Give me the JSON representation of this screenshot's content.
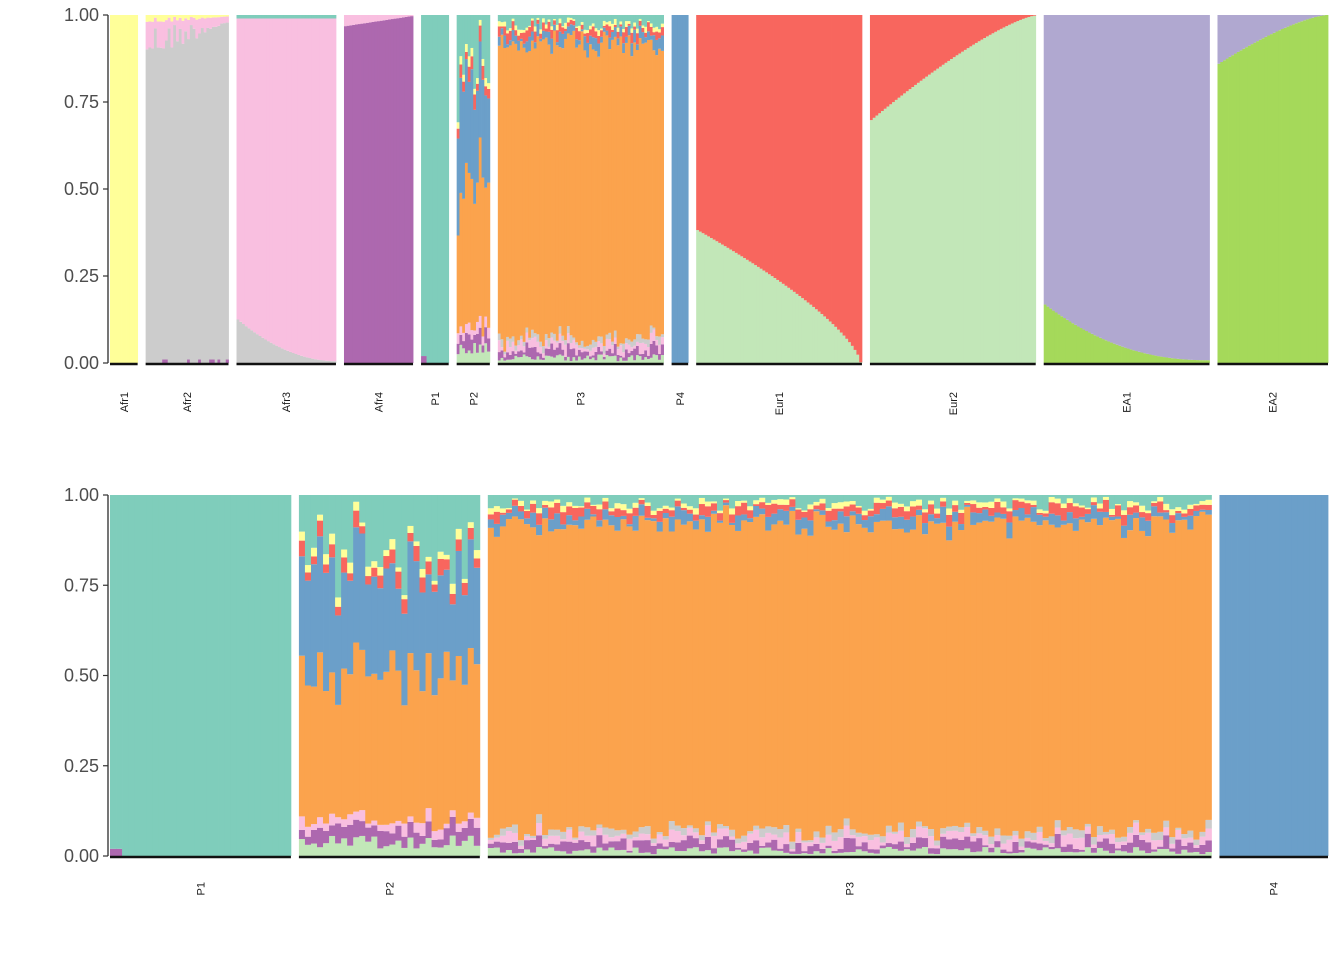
{
  "palette": {
    "aqua": "#7fcdbb",
    "yellow": "#ffff99",
    "red": "#f8665e",
    "blue": "#6b9fc9",
    "orange": "#fba34d",
    "green": "#a5d95a",
    "pink": "#f9bfe0",
    "grey": "#cccccc",
    "purple": "#ad68af",
    "lightgreen": "#c2e7b8",
    "lavender": "#b0a8d0"
  },
  "chart_data": [
    {
      "type": "bar",
      "subtype": "stacked-admixture",
      "ylim": [
        0,
        1
      ],
      "yticks": [
        "0.00",
        "0.25",
        "0.50",
        "0.75",
        "1.00"
      ],
      "grid": false,
      "legend": "none",
      "groups": [
        {
          "label": "Afr1",
          "n": 10,
          "profile": "afr1"
        },
        {
          "label": "Afr2",
          "n": 30,
          "profile": "afr2"
        },
        {
          "label": "Afr3",
          "n": 36,
          "profile": "afr3"
        },
        {
          "label": "Afr4",
          "n": 25,
          "profile": "afr4"
        },
        {
          "label": "P1",
          "n": 10,
          "profile": "p1"
        },
        {
          "label": "P2",
          "n": 12,
          "profile": "p2"
        },
        {
          "label": "P3",
          "n": 60,
          "profile": "p3"
        },
        {
          "label": "P4",
          "n": 6,
          "profile": "p4"
        },
        {
          "label": "Eur1",
          "n": 60,
          "profile": "eur1"
        },
        {
          "label": "Eur2",
          "n": 60,
          "profile": "eur2"
        },
        {
          "label": "EA1",
          "n": 60,
          "profile": "ea1"
        },
        {
          "label": "EA2",
          "n": 40,
          "profile": "ea2"
        }
      ]
    },
    {
      "type": "bar",
      "subtype": "stacked-admixture",
      "ylim": [
        0,
        1
      ],
      "yticks": [
        "0.00",
        "0.25",
        "0.50",
        "0.75",
        "1.00"
      ],
      "grid": false,
      "legend": "none",
      "groups": [
        {
          "label": "P1",
          "n": 30,
          "profile": "p1"
        },
        {
          "label": "P2",
          "n": 30,
          "profile": "p2"
        },
        {
          "label": "P3",
          "n": 120,
          "profile": "p3"
        },
        {
          "label": "P4",
          "n": 18,
          "profile": "p4"
        }
      ]
    }
  ]
}
